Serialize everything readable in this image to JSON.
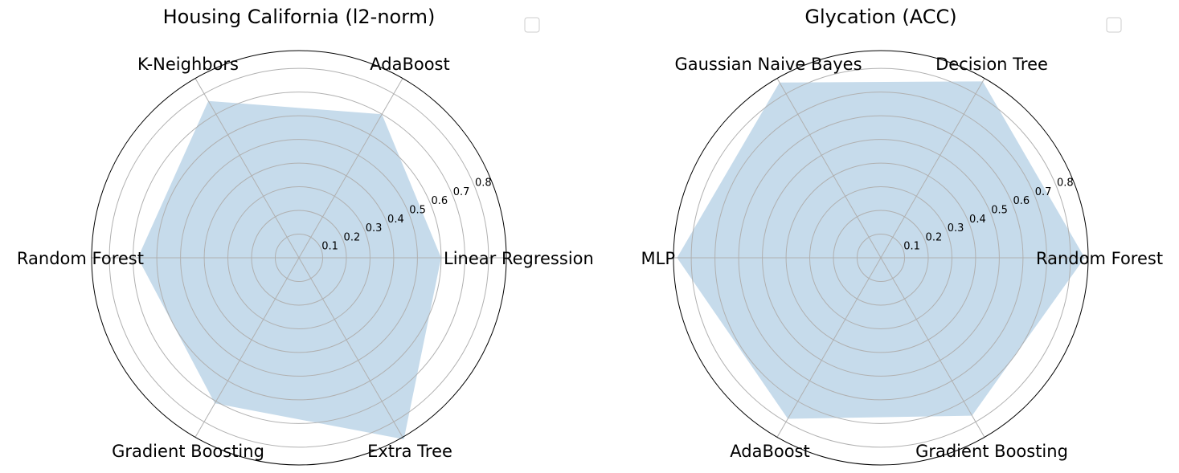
{
  "chart_data": [
    {
      "type": "radar",
      "title": "Housing California (l2-norm)",
      "categories": [
        "Linear Regression",
        "AdaBoost",
        "K-Neighbors",
        "Random Forest",
        "Gradient Boosting",
        "Extra Tree"
      ],
      "values": [
        0.6,
        0.7,
        0.765,
        0.68,
        0.71,
        0.885
      ],
      "rlim": [
        0,
        0.875
      ],
      "rticks": [
        "0.1",
        "0.2",
        "0.3",
        "0.4",
        "0.5",
        "0.6",
        "0.7",
        "0.8"
      ],
      "fill_color": "#c6dbeb",
      "grid": true,
      "legend": "top-right, empty"
    },
    {
      "type": "radar",
      "title": "Glycation (ACC)",
      "categories": [
        "Random Forest",
        "Decision Tree",
        "Gaussian Naive Bayes",
        "MLP",
        "AdaBoost",
        "Gradient Boosting"
      ],
      "values": [
        0.86,
        0.86,
        0.855,
        0.86,
        0.785,
        0.77
      ],
      "rlim": [
        0,
        0.875
      ],
      "rticks": [
        "0.1",
        "0.2",
        "0.3",
        "0.4",
        "0.5",
        "0.6",
        "0.7",
        "0.8"
      ],
      "fill_color": "#c6dbeb",
      "grid": true,
      "legend": "top-right, empty"
    }
  ]
}
